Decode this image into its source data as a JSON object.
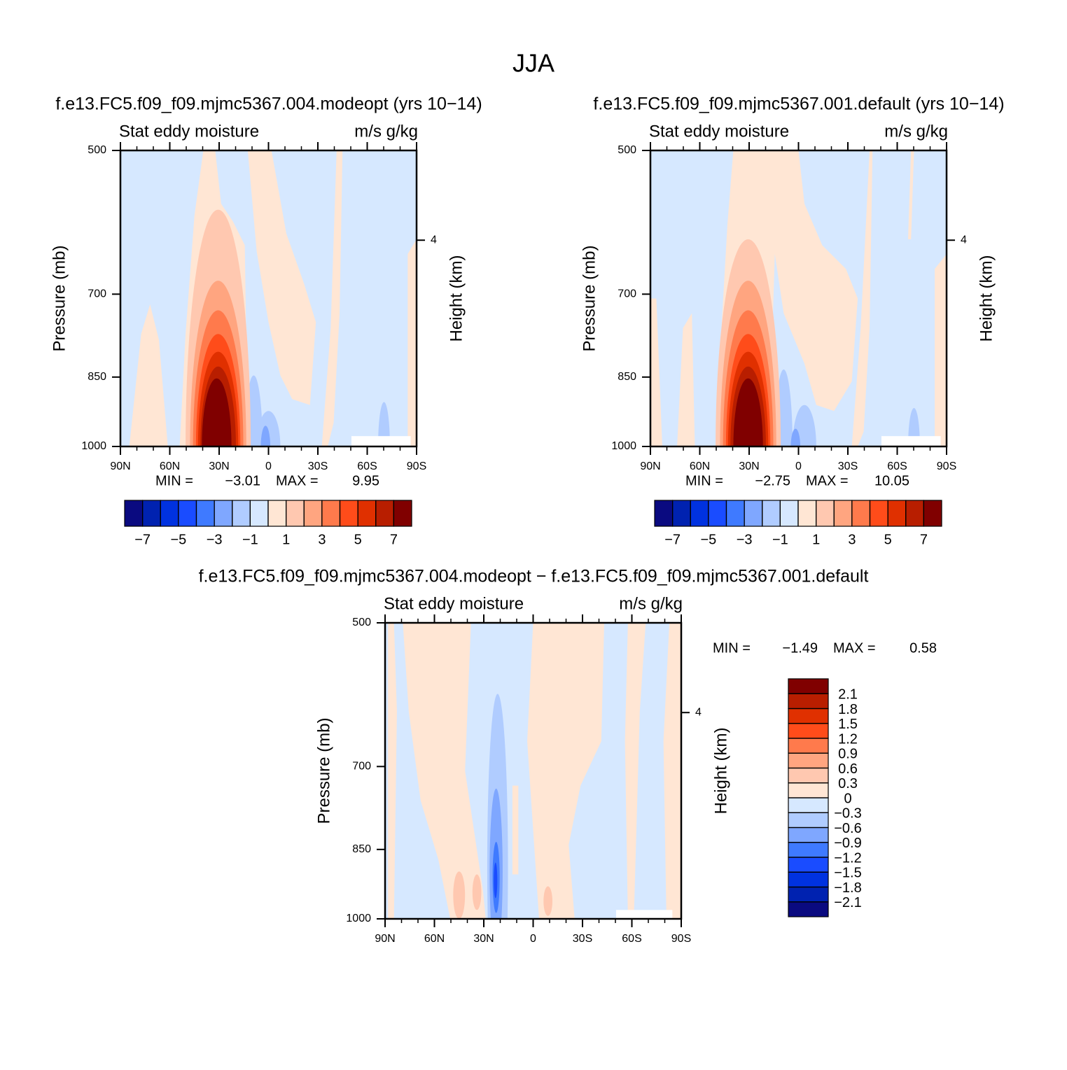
{
  "title": "JJA",
  "chart_data": [
    {
      "type": "contour",
      "title": "f.e13.FC5.f09_f09.mjmc5367.004.modeopt (yrs 10−14)",
      "subtitle_left": "Stat eddy moisture",
      "subtitle_right": "m/s g/kg",
      "y_label": "Pressure (mb)",
      "y2_label": "Height (km)",
      "xlim": [
        90,
        -90
      ],
      "xticks": [
        {
          "value": 90,
          "label": "90N"
        },
        {
          "value": 60,
          "label": "60N"
        },
        {
          "value": 30,
          "label": "30N"
        },
        0,
        {
          "value": -30,
          "label": "30S"
        },
        {
          "value": -60,
          "label": "60S"
        },
        {
          "value": -90,
          "label": "90S"
        }
      ],
      "ylim": [
        1000,
        500
      ],
      "ylog": true,
      "yticks": [
        500,
        700,
        850,
        1000
      ],
      "y2lim": [
        0,
        5.74
      ],
      "y2ticks": [
        4
      ],
      "stats": {
        "names": [
          "MIN =",
          "MAX ="
        ],
        "values": [
          -3.01,
          9.95
        ],
        "value_labels": [
          "−3.01",
          "9.95"
        ]
      },
      "colorbar": {
        "orientation": "horizontal",
        "colors": [
          "#0a0a80",
          "#0022b0",
          "#0032e0",
          "#1a4cff",
          "#3f7aff",
          "#7fa7ff",
          "#b0ccff",
          "#d6e8ff",
          "#ffe6d4",
          "#ffc8b0",
          "#ffa580",
          "#ff7a4c",
          "#ff4c1a",
          "#e03000",
          "#b81e00",
          "#800000"
        ],
        "levels": [
          -7,
          -6,
          -5,
          -4,
          -3,
          -2,
          -1,
          0,
          1,
          2,
          3,
          4,
          5,
          6,
          7
        ],
        "ticks": [
          {
            "value": -7,
            "label": "−7"
          },
          {
            "value": -5,
            "label": "−5"
          },
          {
            "value": -3,
            "label": "−3"
          },
          {
            "value": -1,
            "label": "−1"
          },
          1,
          3,
          5,
          7
        ]
      }
    },
    {
      "type": "contour",
      "title": "f.e13.FC5.f09_f09.mjmc5367.001.default (yrs 10−14)",
      "subtitle_left": "Stat eddy moisture",
      "subtitle_right": "m/s g/kg",
      "y_label": "Pressure (mb)",
      "y2_label": "Height (km)",
      "xlim": [
        90,
        -90
      ],
      "xticks": [
        {
          "value": 90,
          "label": "90N"
        },
        {
          "value": 60,
          "label": "60N"
        },
        {
          "value": 30,
          "label": "30N"
        },
        0,
        {
          "value": -30,
          "label": "30S"
        },
        {
          "value": -60,
          "label": "60S"
        },
        {
          "value": -90,
          "label": "90S"
        }
      ],
      "ylim": [
        1000,
        500
      ],
      "ylog": true,
      "yticks": [
        500,
        700,
        850,
        1000
      ],
      "y2lim": [
        0,
        5.74
      ],
      "y2ticks": [
        4
      ],
      "stats": {
        "names": [
          "MIN =",
          "MAX ="
        ],
        "values": [
          -2.75,
          10.05
        ],
        "value_labels": [
          "−2.75",
          "10.05"
        ]
      },
      "colorbar": {
        "orientation": "horizontal",
        "colors": [
          "#0a0a80",
          "#0022b0",
          "#0032e0",
          "#1a4cff",
          "#3f7aff",
          "#7fa7ff",
          "#b0ccff",
          "#d6e8ff",
          "#ffe6d4",
          "#ffc8b0",
          "#ffa580",
          "#ff7a4c",
          "#ff4c1a",
          "#e03000",
          "#b81e00",
          "#800000"
        ],
        "levels": [
          -7,
          -6,
          -5,
          -4,
          -3,
          -2,
          -1,
          0,
          1,
          2,
          3,
          4,
          5,
          6,
          7
        ],
        "ticks": [
          {
            "value": -7,
            "label": "−7"
          },
          {
            "value": -5,
            "label": "−5"
          },
          {
            "value": -3,
            "label": "−3"
          },
          {
            "value": -1,
            "label": "−1"
          },
          1,
          3,
          5,
          7
        ]
      }
    },
    {
      "type": "contour",
      "title": "f.e13.FC5.f09_f09.mjmc5367.004.modeopt − f.e13.FC5.f09_f09.mjmc5367.001.default",
      "subtitle_left": "Stat eddy moisture",
      "subtitle_right": "m/s g/kg",
      "y_label": "Pressure (mb)",
      "y2_label": "Height (km)",
      "xlim": [
        90,
        -90
      ],
      "xticks": [
        {
          "value": 90,
          "label": "90N"
        },
        {
          "value": 60,
          "label": "60N"
        },
        {
          "value": 30,
          "label": "30N"
        },
        0,
        {
          "value": -30,
          "label": "30S"
        },
        {
          "value": -60,
          "label": "60S"
        },
        {
          "value": -90,
          "label": "90S"
        }
      ],
      "ylim": [
        1000,
        500
      ],
      "ylog": true,
      "yticks": [
        500,
        700,
        850,
        1000
      ],
      "y2lim": [
        0,
        5.74
      ],
      "y2ticks": [
        4
      ],
      "stats": {
        "names": [
          "MIN =",
          "MAX ="
        ],
        "values": [
          -1.49,
          0.58
        ],
        "value_labels": [
          "−1.49",
          "0.58"
        ]
      },
      "colorbar": {
        "orientation": "vertical",
        "colors": [
          "#0a0a80",
          "#0022b0",
          "#0032e0",
          "#1a4cff",
          "#3f7aff",
          "#7fa7ff",
          "#b0ccff",
          "#d6e8ff",
          "#ffe6d4",
          "#ffc8b0",
          "#ffa580",
          "#ff7a4c",
          "#ff4c1a",
          "#e03000",
          "#b81e00",
          "#800000"
        ],
        "levels": [
          -2.1,
          -1.8,
          -1.5,
          -1.2,
          -0.9,
          -0.6,
          -0.3,
          0,
          0.3,
          0.6,
          0.9,
          1.2,
          1.5,
          1.8,
          2.1
        ],
        "ticks": [
          {
            "value": -2.1,
            "label": "−2.1"
          },
          {
            "value": -1.8,
            "label": "−1.8"
          },
          {
            "value": -1.5,
            "label": "−1.5"
          },
          {
            "value": -1.2,
            "label": "−1.2"
          },
          {
            "value": -0.9,
            "label": "−0.9"
          },
          {
            "value": -0.6,
            "label": "−0.6"
          },
          {
            "value": -0.3,
            "label": "−0.3"
          },
          0,
          0.3,
          0.6,
          0.9,
          1.2,
          1.5,
          1.8,
          2.1
        ]
      }
    }
  ]
}
